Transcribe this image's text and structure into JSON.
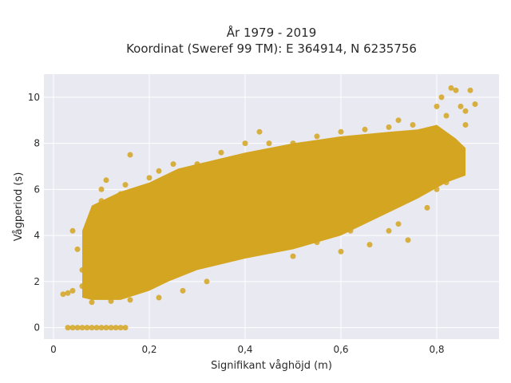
{
  "chart_data": {
    "type": "scatter",
    "title_lines": [
      "År 1979 - 2019",
      "Koordinat (Sweref 99 TM): E 364914, N 6235756"
    ],
    "xlabel": "Signifikant våghöjd (m)",
    "ylabel": "Vågperiod (s)",
    "xlim": [
      -0.02,
      0.93
    ],
    "ylim": [
      -0.5,
      11
    ],
    "x_ticks": [
      0,
      0.2,
      0.4,
      0.6,
      0.8
    ],
    "x_tick_labels": [
      "0",
      "0,2",
      "0,4",
      "0,6",
      "0,8"
    ],
    "y_ticks": [
      0,
      2,
      4,
      6,
      8,
      10
    ],
    "y_tick_labels": [
      "0",
      "2",
      "4",
      "6",
      "8",
      "10"
    ],
    "grid": true,
    "background": "#e9e9f1",
    "marker_color": "#d4a520",
    "series": [
      {
        "points": [
          [
            0.03,
            0.0
          ],
          [
            0.04,
            0.0
          ],
          [
            0.05,
            0.0
          ],
          [
            0.06,
            0.0
          ],
          [
            0.07,
            0.0
          ],
          [
            0.08,
            0.0
          ],
          [
            0.09,
            0.0
          ],
          [
            0.1,
            0.0
          ],
          [
            0.11,
            0.0
          ],
          [
            0.12,
            0.0
          ],
          [
            0.13,
            0.0
          ],
          [
            0.14,
            0.0
          ],
          [
            0.15,
            0.0
          ],
          [
            0.02,
            1.45
          ],
          [
            0.03,
            1.5
          ],
          [
            0.04,
            1.6
          ],
          [
            0.08,
            1.1
          ],
          [
            0.12,
            1.15
          ],
          [
            0.16,
            1.2
          ],
          [
            0.22,
            1.3
          ],
          [
            0.27,
            1.6
          ],
          [
            0.32,
            2.0
          ],
          [
            0.06,
            2.5
          ],
          [
            0.07,
            3.2
          ],
          [
            0.08,
            4.0
          ],
          [
            0.09,
            4.8
          ],
          [
            0.1,
            5.5
          ],
          [
            0.1,
            6.0
          ],
          [
            0.11,
            6.4
          ],
          [
            0.12,
            5.0
          ],
          [
            0.13,
            4.2
          ],
          [
            0.14,
            5.8
          ],
          [
            0.15,
            6.2
          ],
          [
            0.16,
            7.5
          ],
          [
            0.18,
            5.7
          ],
          [
            0.2,
            6.5
          ],
          [
            0.22,
            6.8
          ],
          [
            0.25,
            7.1
          ],
          [
            0.28,
            6.0
          ],
          [
            0.2,
            2.6
          ],
          [
            0.25,
            3.2
          ],
          [
            0.3,
            3.5
          ],
          [
            0.35,
            4.0
          ],
          [
            0.4,
            4.4
          ],
          [
            0.45,
            4.6
          ],
          [
            0.5,
            3.1
          ],
          [
            0.55,
            3.7
          ],
          [
            0.6,
            3.3
          ],
          [
            0.62,
            4.2
          ],
          [
            0.66,
            3.6
          ],
          [
            0.7,
            4.2
          ],
          [
            0.72,
            4.5
          ],
          [
            0.74,
            3.8
          ],
          [
            0.3,
            7.1
          ],
          [
            0.35,
            7.6
          ],
          [
            0.4,
            8.0
          ],
          [
            0.43,
            8.5
          ],
          [
            0.45,
            8.0
          ],
          [
            0.5,
            8.0
          ],
          [
            0.55,
            8.3
          ],
          [
            0.6,
            8.5
          ],
          [
            0.65,
            8.6
          ],
          [
            0.7,
            8.7
          ],
          [
            0.72,
            7.5
          ],
          [
            0.75,
            8.8
          ],
          [
            0.78,
            7.9
          ],
          [
            0.8,
            9.6
          ],
          [
            0.81,
            10.0
          ],
          [
            0.82,
            9.2
          ],
          [
            0.83,
            10.4
          ],
          [
            0.84,
            10.3
          ],
          [
            0.85,
            9.6
          ],
          [
            0.86,
            9.4
          ],
          [
            0.87,
            10.3
          ],
          [
            0.88,
            9.7
          ],
          [
            0.86,
            8.8
          ],
          [
            0.84,
            7.5
          ],
          [
            0.82,
            6.3
          ],
          [
            0.8,
            6.0
          ],
          [
            0.78,
            5.2
          ],
          [
            0.76,
            7.0
          ],
          [
            0.74,
            8.2
          ],
          [
            0.72,
            9.0
          ],
          [
            0.68,
            8.2
          ],
          [
            0.64,
            7.0
          ],
          [
            0.6,
            6.0
          ],
          [
            0.56,
            5.0
          ],
          [
            0.52,
            4.2
          ],
          [
            0.48,
            5.6
          ],
          [
            0.44,
            6.2
          ],
          [
            0.4,
            7.3
          ],
          [
            0.36,
            5.5
          ],
          [
            0.32,
            6.3
          ],
          [
            0.28,
            5.0
          ],
          [
            0.24,
            4.0
          ],
          [
            0.2,
            3.5
          ],
          [
            0.18,
            2.2
          ],
          [
            0.16,
            3.0
          ],
          [
            0.14,
            2.0
          ],
          [
            0.12,
            1.6
          ],
          [
            0.1,
            2.3
          ],
          [
            0.08,
            3.6
          ],
          [
            0.06,
            1.8
          ],
          [
            0.05,
            3.4
          ],
          [
            0.04,
            4.2
          ]
        ]
      }
    ]
  }
}
